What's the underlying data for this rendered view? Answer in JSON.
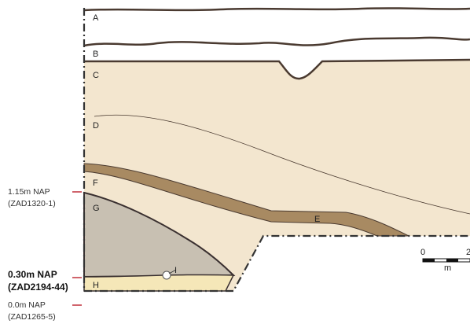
{
  "layers": [
    {
      "label": "A"
    },
    {
      "label": "B"
    },
    {
      "label": "C"
    },
    {
      "label": "D"
    },
    {
      "label": "E"
    },
    {
      "label": "F"
    },
    {
      "label": "G"
    },
    {
      "label": "H"
    },
    {
      "label": "I"
    }
  ],
  "levels": [
    {
      "height": "1.15m NAP",
      "borehole": "(ZAD1320-1)"
    },
    {
      "height": "0.30m NAP",
      "borehole": "(ZAD2194-44)"
    },
    {
      "height": "0.0m NAP",
      "borehole": "(ZAD1265-5)"
    }
  ],
  "scale": {
    "start": "0",
    "end": "2",
    "unit": "m"
  }
}
